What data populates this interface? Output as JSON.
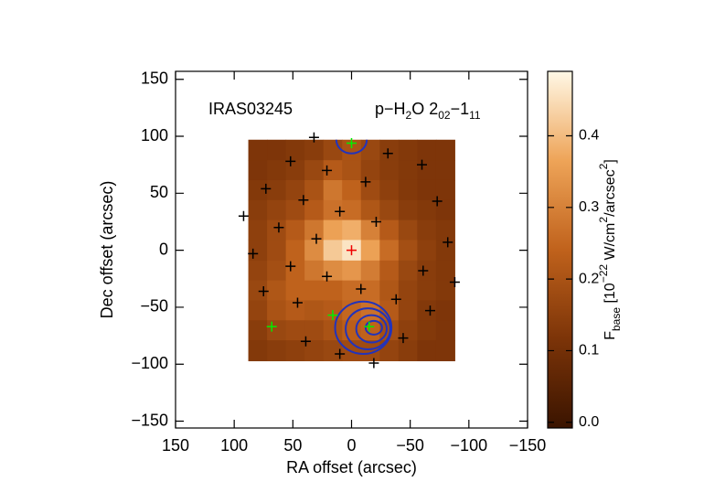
{
  "chart_data": {
    "type": "heatmap",
    "xlabel": "RA offset (arcsec)",
    "ylabel": "Dec offset (arcsec)",
    "annotations": [
      "IRAS03245"
    ],
    "line_label": [
      {
        "text": "p−H"
      },
      {
        "text": "2",
        "shift": "sub"
      },
      {
        "text": "O 2"
      },
      {
        "text": "02",
        "shift": "sub"
      },
      {
        "text": "−1"
      },
      {
        "text": "11",
        "shift": "sub"
      }
    ],
    "xlim": [
      150,
      -150
    ],
    "ylim": [
      -156,
      157
    ],
    "xticks": [
      150,
      100,
      50,
      0,
      {
        "value": -50,
        "label": "−50"
      },
      {
        "value": -100,
        "label": "−100"
      },
      {
        "value": -150,
        "label": "−150"
      }
    ],
    "yticks": [
      150,
      100,
      50,
      0,
      {
        "value": -50,
        "label": "−50"
      },
      {
        "value": -100,
        "label": "−100"
      },
      {
        "value": -150,
        "label": "−150"
      }
    ],
    "x": [
      80,
      64,
      48,
      32,
      16,
      0,
      -16,
      -32,
      -48,
      -64,
      -80
    ],
    "y": [
      88,
      70,
      53,
      35,
      18,
      0,
      -18,
      -35,
      -53,
      -70,
      -88
    ],
    "z": [
      [
        0.12,
        0.12,
        0.13,
        0.14,
        0.17,
        0.2,
        0.17,
        0.14,
        0.13,
        0.12,
        0.12
      ],
      [
        0.12,
        0.13,
        0.14,
        0.17,
        0.22,
        0.2,
        0.16,
        0.14,
        0.13,
        0.12,
        0.12
      ],
      [
        0.13,
        0.14,
        0.16,
        0.2,
        0.28,
        0.24,
        0.18,
        0.15,
        0.13,
        0.12,
        0.12
      ],
      [
        0.14,
        0.16,
        0.18,
        0.22,
        0.27,
        0.26,
        0.21,
        0.17,
        0.14,
        0.13,
        0.12
      ],
      [
        0.15,
        0.18,
        0.22,
        0.28,
        0.36,
        0.38,
        0.3,
        0.22,
        0.17,
        0.14,
        0.13
      ],
      [
        0.15,
        0.18,
        0.24,
        0.32,
        0.42,
        0.46,
        0.36,
        0.26,
        0.19,
        0.15,
        0.13
      ],
      [
        0.16,
        0.19,
        0.24,
        0.28,
        0.32,
        0.34,
        0.29,
        0.22,
        0.17,
        0.14,
        0.13
      ],
      [
        0.17,
        0.21,
        0.24,
        0.24,
        0.24,
        0.26,
        0.26,
        0.21,
        0.16,
        0.14,
        0.13
      ],
      [
        0.16,
        0.2,
        0.22,
        0.21,
        0.22,
        0.25,
        0.27,
        0.22,
        0.16,
        0.13,
        0.12
      ],
      [
        0.14,
        0.17,
        0.18,
        0.18,
        0.2,
        0.23,
        0.24,
        0.19,
        0.15,
        0.13,
        0.12
      ],
      [
        0.13,
        0.14,
        0.15,
        0.16,
        0.17,
        0.18,
        0.18,
        0.16,
        0.14,
        0.12,
        0.12
      ]
    ],
    "zlim": [
      -0.008,
      0.49
    ],
    "colormap": [
      "#3a1400",
      "#7c3408",
      "#c0621c",
      "#eea458",
      "#fff8e6"
    ],
    "colorbar_label": [
      {
        "text": "F"
      },
      {
        "text": "base",
        "shift": "sub"
      },
      {
        "text": " [10"
      },
      {
        "text": "−22",
        "shift": "super"
      },
      {
        "text": " W/cm"
      },
      {
        "text": "2",
        "shift": "super"
      },
      {
        "text": "/arcsec"
      },
      {
        "text": "2",
        "shift": "super"
      },
      {
        "text": "]"
      }
    ],
    "zticks": [
      {
        "value": 0,
        "label": "0.0"
      },
      0.1,
      0.2,
      0.3,
      0.4
    ],
    "markers": [
      {
        "color": "#000000",
        "x": [
          32,
          52,
          21,
          -31,
          -60,
          73,
          41,
          -12,
          -73,
          92,
          62,
          10,
          -21,
          30,
          -82,
          84,
          52,
          21,
          -61,
          -88,
          75,
          46,
          -8,
          -38,
          -67,
          39,
          10,
          -44,
          -19
        ],
        "y": [
          99,
          78,
          70,
          85,
          75,
          54,
          44,
          60,
          43,
          30,
          20,
          34,
          25,
          10,
          7,
          -3,
          -14,
          -23,
          -18,
          -28,
          -36,
          -46,
          -34,
          -43,
          -53,
          -80,
          -91,
          -77,
          -99
        ]
      },
      {
        "color": "#00ee00",
        "x": [
          0,
          68,
          16,
          -15
        ],
        "y": [
          94,
          -67,
          -57,
          -67
        ]
      },
      {
        "color": "#ee0000",
        "x": [
          0
        ],
        "y": [
          0
        ]
      }
    ],
    "contours": {
      "color": "#2233bb",
      "ellipses": [
        {
          "cx": -10,
          "cy": -68,
          "rx": 24,
          "ry": 23
        },
        {
          "cx": -14,
          "cy": -69,
          "rx": 19,
          "ry": 18
        },
        {
          "cx": -17,
          "cy": -69,
          "rx": 13,
          "ry": 12
        },
        {
          "cx": -19,
          "cy": -68,
          "rx": 7,
          "ry": 6
        },
        {
          "cx": 0,
          "cy": 97,
          "rx": 13,
          "ry": 12
        }
      ]
    }
  }
}
